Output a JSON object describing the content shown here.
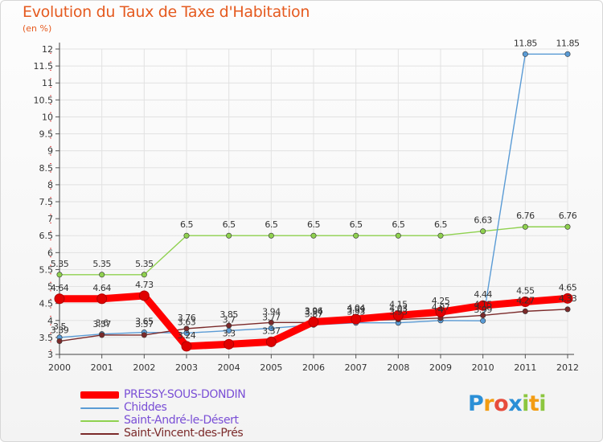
{
  "chart_data": {
    "type": "line",
    "title": "Evolution du Taux de Taxe d'Habitation",
    "unit": "(en %)",
    "x": [
      "2000",
      "2001",
      "2002",
      "2003",
      "2004",
      "2005",
      "2006",
      "2007",
      "2008",
      "2009",
      "2010",
      "2011",
      "2012"
    ],
    "yticks": [
      "3",
      "3.5",
      "4",
      "4.5",
      "5",
      "5.5",
      "6",
      "6.5",
      "7",
      "7.5",
      "8",
      "8.5",
      "9",
      "9.5",
      "10",
      "10.5",
      "11",
      "11.5",
      "12"
    ],
    "ylim": [
      3,
      12
    ],
    "grid": true,
    "legend_position": "bottom-left",
    "series": [
      {
        "name": "PRESSY-SOUS-DONDIN",
        "color": "#ff0000",
        "style": "thick",
        "values": [
          4.64,
          4.64,
          4.73,
          3.24,
          3.3,
          3.37,
          3.96,
          4.04,
          4.15,
          4.25,
          4.44,
          4.55,
          4.65
        ],
        "labels": [
          "4.64",
          "4.64",
          "4.73",
          "3.24",
          "3.3",
          "3.37",
          "3.96",
          "4.04",
          "4.15",
          "4.25",
          "4.44",
          "4.55",
          "4.65"
        ]
      },
      {
        "name": "Chiddes",
        "color": "#5a9bd5",
        "style": "thin",
        "values": [
          3.5,
          3.6,
          3.65,
          3.63,
          3.7,
          3.77,
          3.87,
          3.93,
          3.93,
          4.0,
          3.99,
          11.85,
          11.85
        ],
        "labels": [
          "3.5",
          "3.6",
          "3.65",
          "3.63",
          "3.7",
          "3.77",
          "3.87",
          "3.93",
          "3.93",
          "4",
          "3.99",
          "11.85",
          "11.85"
        ]
      },
      {
        "name": "Saint-André-le-Désert",
        "color": "#8fd14f",
        "style": "thin",
        "values": [
          5.35,
          5.35,
          5.35,
          6.5,
          6.5,
          6.5,
          6.5,
          6.5,
          6.5,
          6.5,
          6.63,
          6.76,
          6.76
        ],
        "labels": [
          "5.35",
          "5.35",
          "5.35",
          "6.5",
          "6.5",
          "6.5",
          "6.5",
          "6.5",
          "6.5",
          "6.5",
          "6.63",
          "6.76",
          "6.76"
        ]
      },
      {
        "name": "Saint-Vincent-des-Prés",
        "color": "#7b2a2a",
        "style": "thin",
        "values": [
          3.39,
          3.57,
          3.57,
          3.76,
          3.85,
          3.94,
          3.94,
          3.99,
          4.03,
          4.07,
          4.15,
          4.27,
          4.33
        ],
        "labels": [
          "3.39",
          "3.57",
          "3.57",
          "3.76",
          "3.85",
          "3.94",
          "3.94",
          "3.99",
          "4.03",
          "4.07",
          "4.15",
          "4.27",
          "4.33"
        ]
      }
    ]
  },
  "logo": {
    "letters": [
      "P",
      "r",
      "o",
      "x",
      "i",
      "t",
      "i"
    ],
    "colors": [
      "#2b8fd6",
      "#f39c12",
      "#e74c3c",
      "#2b8fd6",
      "#8cc63f",
      "#f39c12",
      "#8cc63f"
    ]
  }
}
